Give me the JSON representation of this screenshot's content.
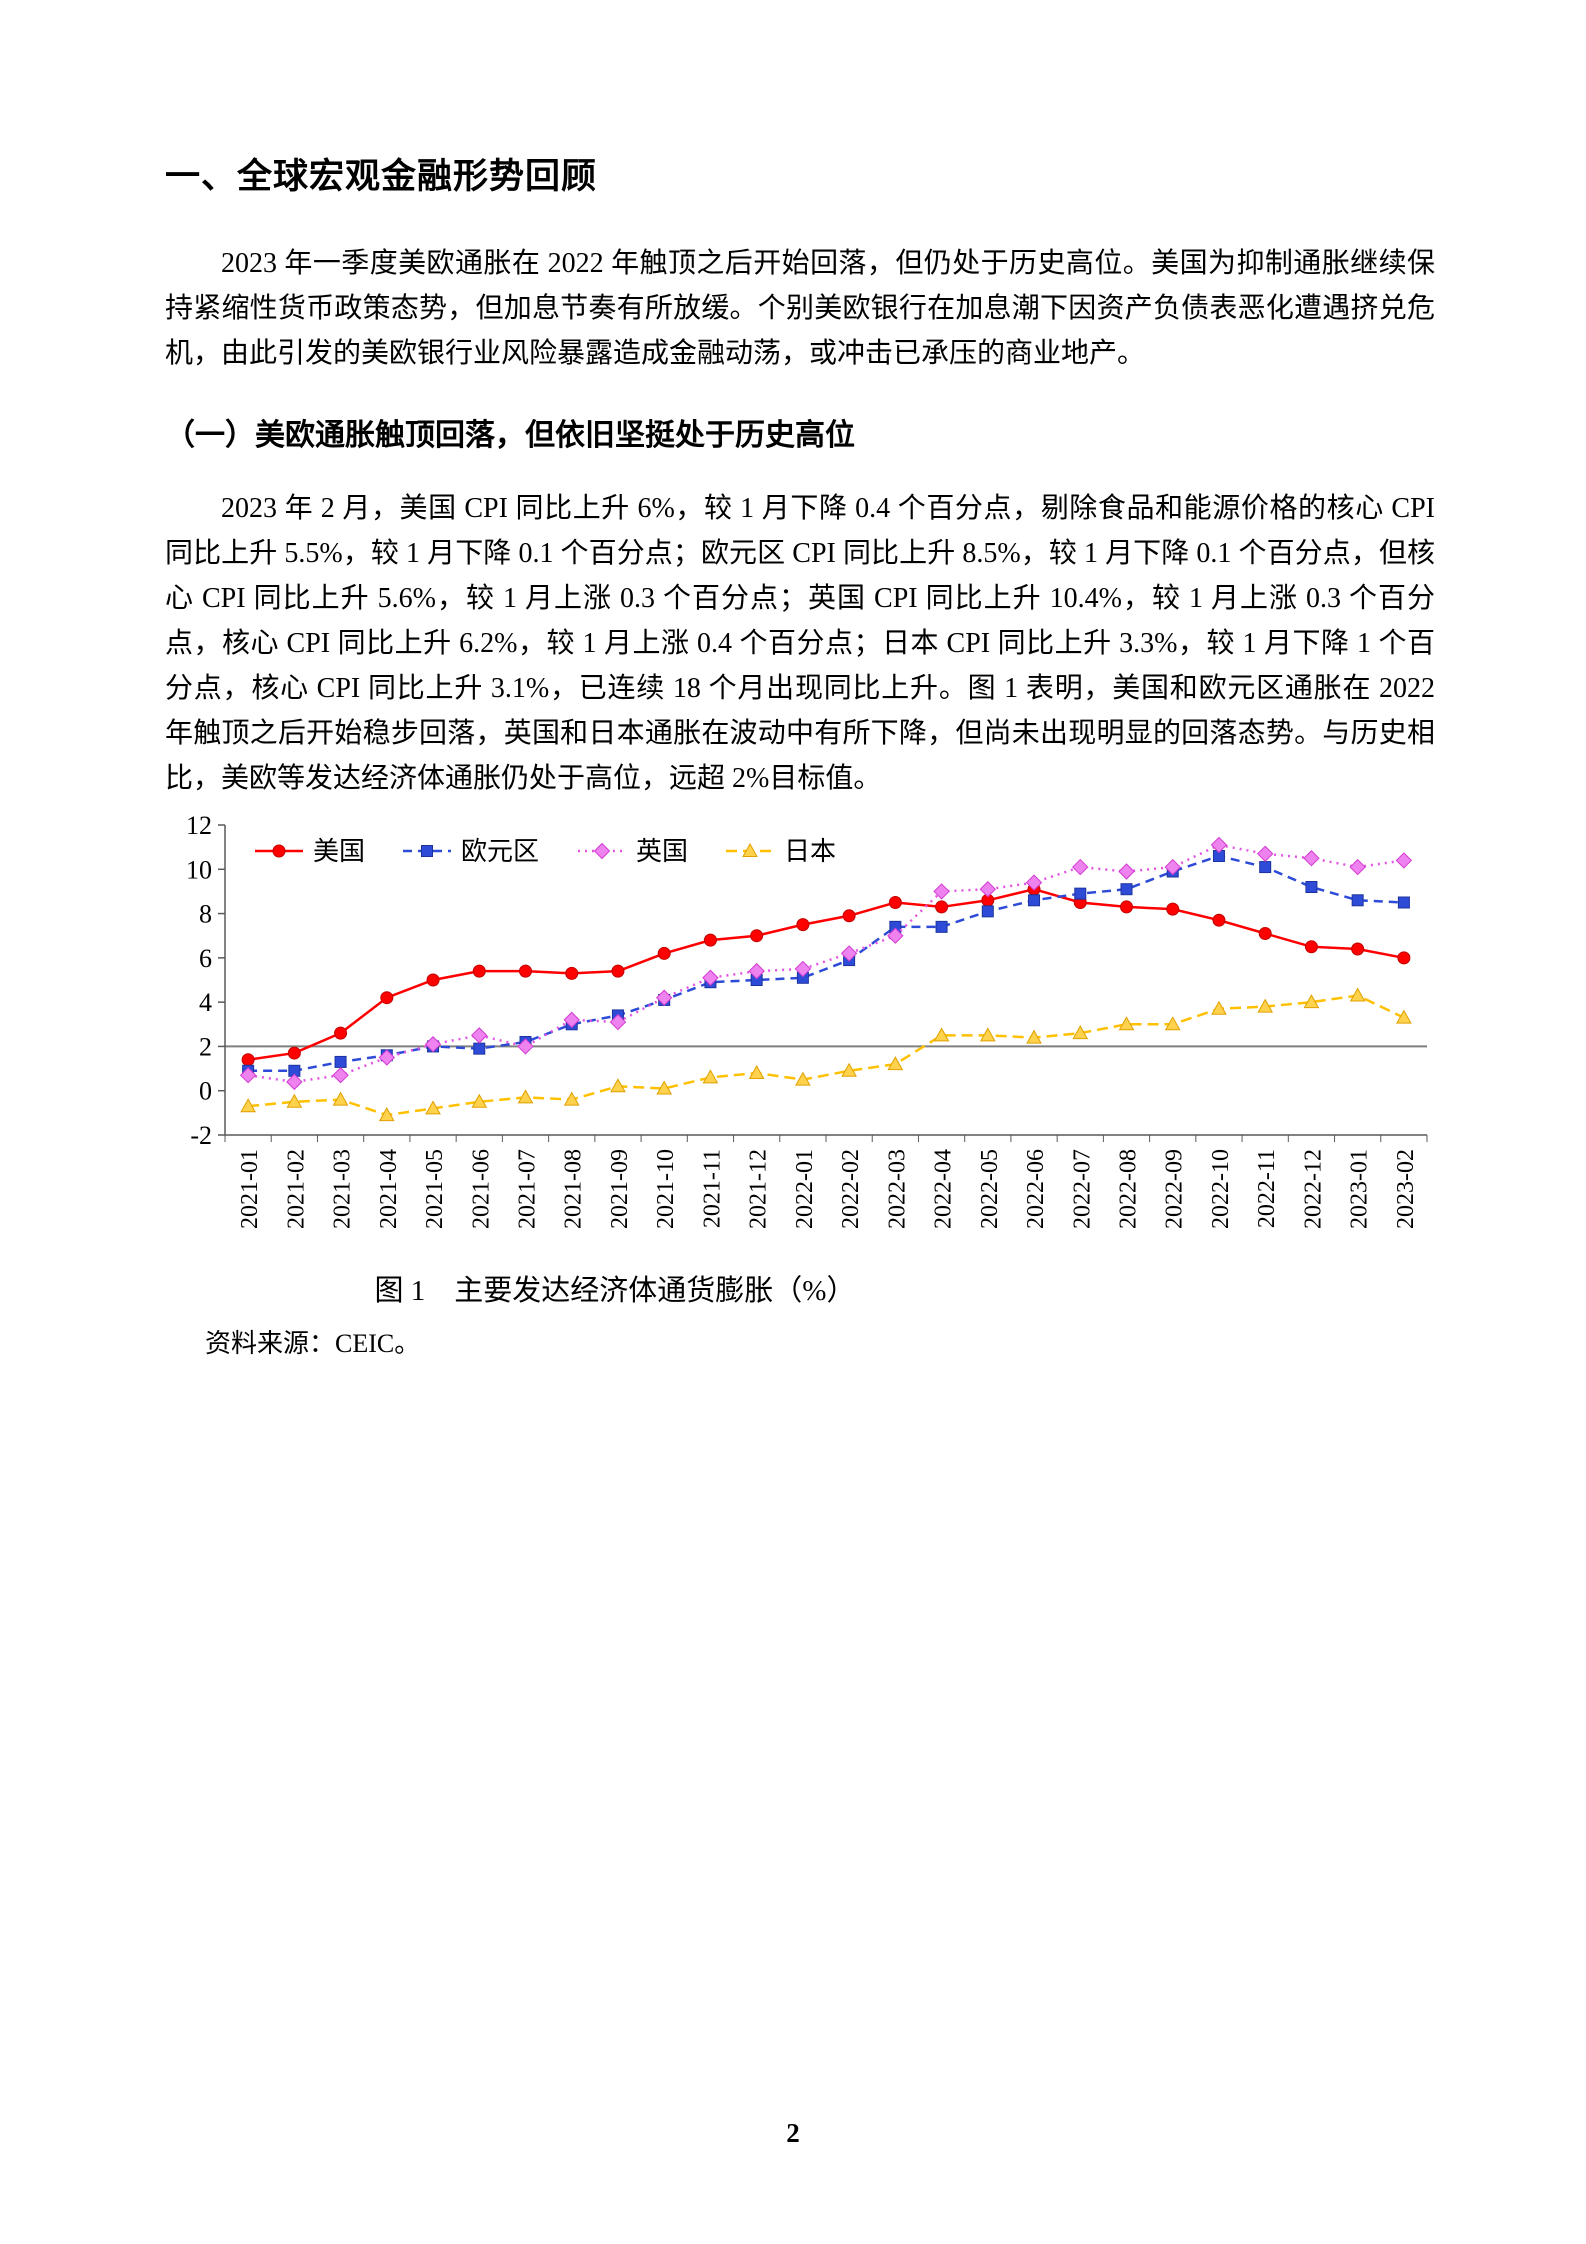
{
  "page": {
    "number": "2"
  },
  "heading": "一、全球宏观金融形势回顾",
  "para1": "2023 年一季度美欧通胀在 2022 年触顶之后开始回落，但仍处于历史高位。美国为抑制通胀继续保持紧缩性货币政策态势，但加息节奏有所放缓。个别美欧银行在加息潮下因资产负债表恶化遭遇挤兑危机，由此引发的美欧银行业风险暴露造成金融动荡，或冲击已承压的商业地产。",
  "subheading": "（一）美欧通胀触顶回落，但依旧坚挺处于历史高位",
  "para2": "2023 年 2 月，美国 CPI 同比上升 6%，较 1 月下降 0.4 个百分点，剔除食品和能源价格的核心 CPI 同比上升 5.5%，较 1 月下降 0.1 个百分点；欧元区 CPI 同比上升 8.5%，较 1 月下降 0.1 个百分点，但核心 CPI 同比上升 5.6%，较 1 月上涨 0.3 个百分点；英国 CPI 同比上升 10.4%，较 1 月上涨 0.3 个百分点，核心 CPI 同比上升 6.2%，较 1 月上涨 0.4 个百分点；日本 CPI 同比上升 3.3%，较 1 月下降 1 个百分点，核心 CPI 同比上升 3.1%，已连续 18 个月出现同比上升。图 1 表明，美国和欧元区通胀在 2022 年触顶之后开始稳步回落，英国和日本通胀在波动中有所下降，但尚未出现明显的回落态势。与历史相比，美欧等发达经济体通胀仍处于高位，远超 2%目标值。",
  "figure": {
    "caption": "图 1　主要发达经济体通货膨胀（%）",
    "source": "资料来源：CEIC。"
  },
  "chart_data": {
    "type": "line",
    "title": "",
    "xlabel": "",
    "ylabel": "",
    "ylim": [
      -2,
      12
    ],
    "ytick_step": 2,
    "reference_line_y": 2,
    "grid": false,
    "legend_position": "top-left-inside",
    "categories": [
      "2021-01",
      "2021-02",
      "2021-03",
      "2021-04",
      "2021-05",
      "2021-06",
      "2021-07",
      "2021-08",
      "2021-09",
      "2021-10",
      "2021-11",
      "2021-12",
      "2022-01",
      "2022-02",
      "2022-03",
      "2022-04",
      "2022-05",
      "2022-06",
      "2022-07",
      "2022-08",
      "2022-09",
      "2022-10",
      "2022-11",
      "2022-12",
      "2023-01",
      "2023-02"
    ],
    "series": [
      {
        "name": "美国",
        "color": "#ff0000",
        "dash": "",
        "marker": "circle",
        "marker_fill": "#ff0000",
        "marker_stroke": "#c00000",
        "values": [
          1.4,
          1.7,
          2.6,
          4.2,
          5.0,
          5.4,
          5.4,
          5.3,
          5.4,
          6.2,
          6.8,
          7.0,
          7.5,
          7.9,
          8.5,
          8.3,
          8.6,
          9.1,
          8.5,
          8.3,
          8.2,
          7.7,
          7.1,
          6.5,
          6.4,
          6.0
        ]
      },
      {
        "name": "欧元区",
        "color": "#2e4bd8",
        "dash": "9 6",
        "marker": "square",
        "marker_fill": "#2e4bd8",
        "marker_stroke": "#1c339e",
        "values": [
          0.9,
          0.9,
          1.3,
          1.6,
          2.0,
          1.9,
          2.2,
          3.0,
          3.4,
          4.1,
          4.9,
          5.0,
          5.1,
          5.9,
          7.4,
          7.4,
          8.1,
          8.6,
          8.9,
          9.1,
          9.9,
          10.6,
          10.1,
          9.2,
          8.6,
          8.5
        ]
      },
      {
        "name": "英国",
        "color": "#e454e4",
        "dash": "2 5",
        "marker": "diamond",
        "marker_fill": "#ee82ee",
        "marker_stroke": "#d23bd2",
        "values": [
          0.7,
          0.4,
          0.7,
          1.5,
          2.1,
          2.5,
          2.0,
          3.2,
          3.1,
          4.2,
          5.1,
          5.4,
          5.5,
          6.2,
          7.0,
          9.0,
          9.1,
          9.4,
          10.1,
          9.9,
          10.1,
          11.1,
          10.7,
          10.5,
          10.1,
          10.4
        ]
      },
      {
        "name": "日本",
        "color": "#ffc000",
        "dash": "11 6",
        "marker": "triangle",
        "marker_fill": "#ffd24d",
        "marker_stroke": "#e0a000",
        "values": [
          -0.7,
          -0.5,
          -0.4,
          -1.1,
          -0.8,
          -0.5,
          -0.3,
          -0.4,
          0.2,
          0.1,
          0.6,
          0.8,
          0.5,
          0.9,
          1.2,
          2.5,
          2.5,
          2.4,
          2.6,
          3.0,
          3.0,
          3.7,
          3.8,
          4.0,
          4.3,
          3.3
        ]
      }
    ]
  }
}
